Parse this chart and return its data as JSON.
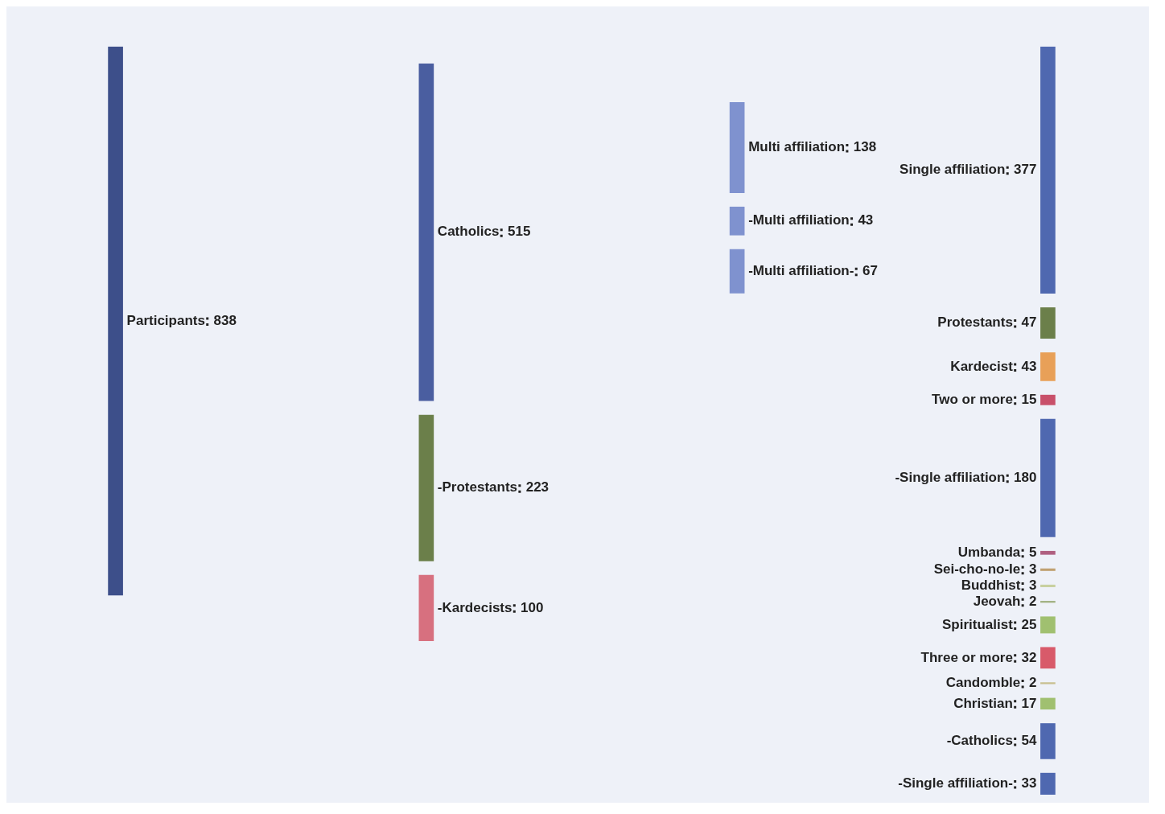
{
  "chart_data": {
    "type": "other",
    "data_labels": true,
    "categories": [
      "Participants",
      "Catholics",
      "-Protestants",
      "-Kardecists",
      "Multi affiliation",
      "-Multi affiliation",
      "-Multi affiliation-",
      "Single affiliation",
      "Protestants",
      "Kardecist",
      "Two or more",
      "-Single affiliation",
      "Umbanda",
      "Sei-cho-no-Ie",
      "Buddhist",
      "Jeovah",
      "Spiritualist",
      "Three or more",
      "Candomble",
      "Christian",
      "-Catholics",
      "-Single affiliation-"
    ],
    "series": [
      {
        "values": [
          838,
          null,
          null,
          null,
          null,
          null,
          null,
          null,
          null,
          null,
          null,
          null,
          null,
          null,
          null,
          null,
          null,
          null,
          null,
          null,
          null,
          null
        ],
        "colors": [
          "#3d4f8a",
          null,
          null,
          null,
          null,
          null,
          null,
          null,
          null,
          null,
          null,
          null,
          null,
          null,
          null,
          null,
          null,
          null,
          null,
          null,
          null,
          null
        ]
      },
      {
        "values": [
          null,
          515,
          223,
          100,
          null,
          null,
          null,
          null,
          null,
          null,
          null,
          null,
          null,
          null,
          null,
          null,
          null,
          null,
          null,
          null,
          null,
          null
        ],
        "colors": [
          null,
          "#4a5ea0",
          "#6b7f4a",
          "#d7707f",
          null,
          null,
          null,
          null,
          null,
          null,
          null,
          null,
          null,
          null,
          null,
          null,
          null,
          null,
          null,
          null,
          null,
          null
        ]
      },
      {
        "values": [
          null,
          null,
          null,
          null,
          138,
          43,
          67,
          null,
          null,
          null,
          null,
          null,
          null,
          null,
          null,
          null,
          null,
          null,
          null,
          null,
          null,
          null
        ],
        "colors": [
          null,
          null,
          null,
          null,
          "#7f92cf",
          "#7f92cf",
          "#7f92cf",
          null,
          null,
          null,
          null,
          null,
          null,
          null,
          null,
          null,
          null,
          null,
          null,
          null,
          null,
          null
        ]
      },
      {
        "values": [
          null,
          null,
          null,
          null,
          null,
          null,
          null,
          377,
          47,
          43,
          15,
          180,
          5,
          3,
          3,
          2,
          25,
          32,
          2,
          17,
          54,
          33
        ],
        "colors": [
          null,
          null,
          null,
          null,
          null,
          null,
          null,
          "#4f68b0",
          "#6b7f4a",
          "#e8a058",
          "#c8506a",
          "#4f68b0",
          "#b06080",
          "#c0a070",
          "#c8d0a0",
          "#a0b080",
          "#a0c070",
          "#d85a6a",
          "#c8c090",
          "#a0c070",
          "#4f68b0",
          "#4f68b0"
        ]
      }
    ]
  }
}
